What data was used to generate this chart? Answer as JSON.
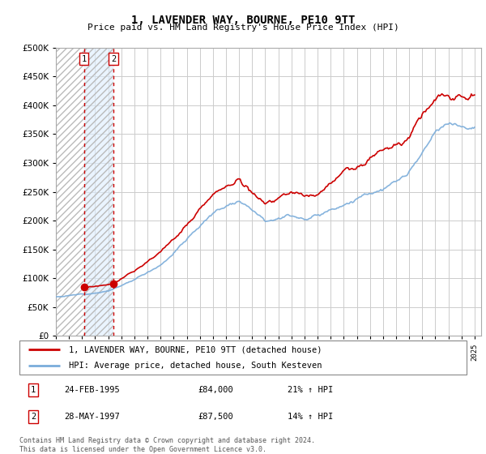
{
  "title": "1, LAVENDER WAY, BOURNE, PE10 9TT",
  "subtitle": "Price paid vs. HM Land Registry's House Price Index (HPI)",
  "legend_line1": "1, LAVENDER WAY, BOURNE, PE10 9TT (detached house)",
  "legend_line2": "HPI: Average price, detached house, South Kesteven",
  "footer": "Contains HM Land Registry data © Crown copyright and database right 2024.\nThis data is licensed under the Open Government Licence v3.0.",
  "transactions": [
    {
      "label": "1",
      "date": "24-FEB-1995",
      "price": 84000,
      "hpi_pct": "21% ↑ HPI",
      "year": 1995.14
    },
    {
      "label": "2",
      "date": "28-MAY-1997",
      "price": 87500,
      "hpi_pct": "14% ↑ HPI",
      "year": 1997.4
    }
  ],
  "ylim": [
    0,
    500000
  ],
  "yticks": [
    0,
    50000,
    100000,
    150000,
    200000,
    250000,
    300000,
    350000,
    400000,
    450000,
    500000
  ],
  "xlim_start": 1993.0,
  "xlim_end": 2025.5,
  "line_color_red": "#cc0000",
  "line_color_blue": "#7aacda",
  "transaction_marker_color": "#cc0000",
  "shade_color": "#ddeeff",
  "dashed_line_color": "#cc0000",
  "hatch_color": "#cccccc",
  "grid_color": "#cccccc",
  "hpi_base_pts_x": [
    1993.0,
    1994.0,
    1995.0,
    1996.0,
    1997.0,
    1998.0,
    1999.0,
    2000.0,
    2001.0,
    2002.0,
    2003.0,
    2004.0,
    2005.0,
    2006.0,
    2007.0,
    2008.0,
    2009.0,
    2010.0,
    2011.0,
    2012.0,
    2013.0,
    2014.0,
    2015.0,
    2016.0,
    2017.0,
    2018.0,
    2019.0,
    2020.0,
    2021.0,
    2022.0,
    2023.0,
    2024.0,
    2025.0
  ],
  "hpi_base_pts_y": [
    68000,
    70000,
    72000,
    76000,
    80000,
    88000,
    98000,
    111000,
    125000,
    148000,
    170000,
    195000,
    215000,
    228000,
    240000,
    228000,
    210000,
    218000,
    222000,
    218000,
    222000,
    235000,
    248000,
    258000,
    268000,
    275000,
    282000,
    295000,
    325000,
    352000,
    362000,
    358000,
    362000
  ],
  "price_base_pts_x": [
    1995.14,
    1995.5,
    1996.0,
    1997.0,
    1997.4,
    1998.0,
    1999.0,
    2000.0,
    2001.0,
    2002.0,
    2003.0,
    2004.0,
    2005.0,
    2006.0,
    2007.0,
    2008.0,
    2009.0,
    2010.0,
    2011.0,
    2012.0,
    2013.0,
    2014.0,
    2015.0,
    2016.0,
    2017.0,
    2018.0,
    2019.0,
    2020.0,
    2021.0,
    2022.0,
    2023.0,
    2024.0,
    2025.0
  ],
  "price_base_pts_y": [
    84000,
    83000,
    84000,
    86000,
    87500,
    96000,
    108000,
    124000,
    140000,
    166000,
    192000,
    220000,
    242000,
    258000,
    275000,
    258000,
    240000,
    248000,
    252000,
    246000,
    253000,
    268000,
    284000,
    296000,
    308000,
    318000,
    328000,
    342000,
    380000,
    410000,
    420000,
    415000,
    418000
  ],
  "noise_seed": 12,
  "n_points": 385
}
